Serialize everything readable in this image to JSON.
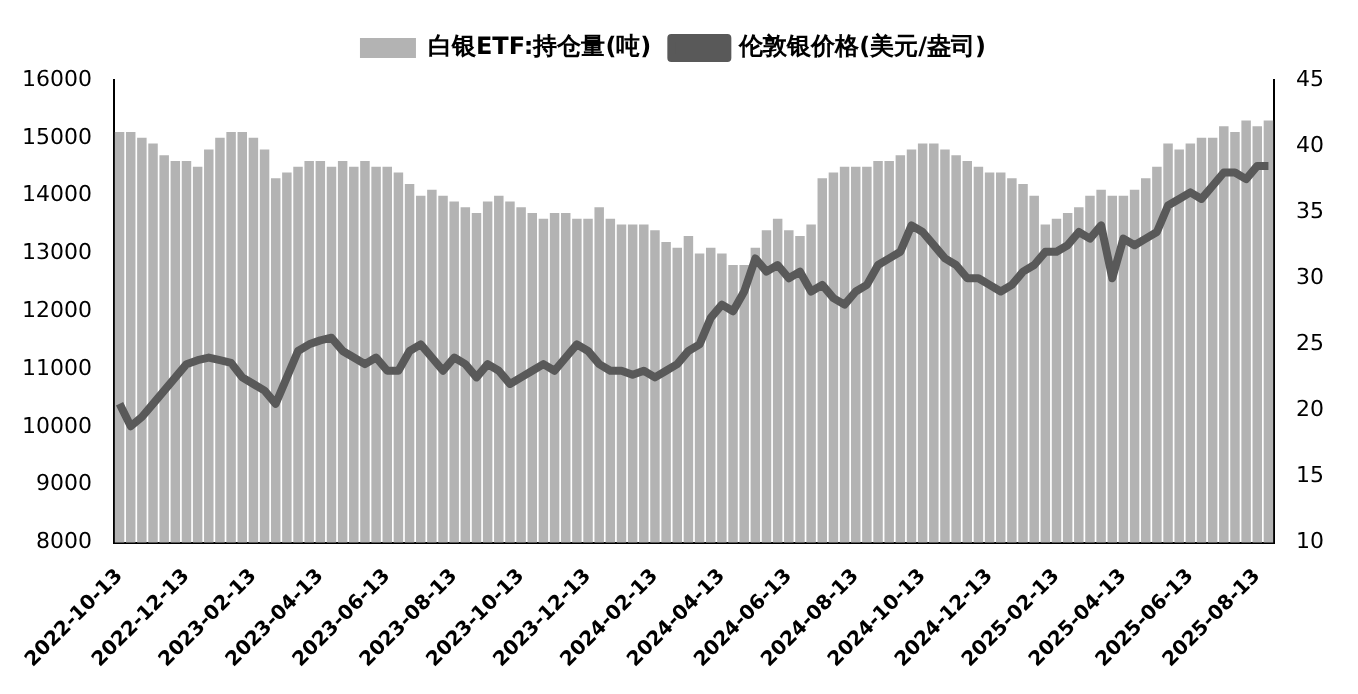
{
  "chart_data": {
    "type": "bar",
    "categories": [
      "2022-10-13",
      null,
      null,
      null,
      null,
      null,
      "2022-12-13",
      null,
      null,
      null,
      null,
      null,
      "2023-02-13",
      null,
      null,
      null,
      null,
      null,
      "2023-04-13",
      null,
      null,
      null,
      null,
      null,
      "2023-06-13",
      null,
      null,
      null,
      null,
      null,
      "2023-08-13",
      null,
      null,
      null,
      null,
      null,
      "2023-10-13",
      null,
      null,
      null,
      null,
      null,
      "2023-12-13",
      null,
      null,
      null,
      null,
      null,
      "2024-02-13",
      null,
      null,
      null,
      null,
      null,
      "2024-04-13",
      null,
      null,
      null,
      null,
      null,
      "2024-06-13",
      null,
      null,
      null,
      null,
      null,
      "2024-08-13",
      null,
      null,
      null,
      null,
      null,
      "2024-10-13",
      null,
      null,
      null,
      null,
      null,
      "2024-12-13",
      null,
      null,
      null,
      null,
      null,
      "2025-02-13",
      null,
      null,
      null,
      null,
      null,
      "2025-04-13",
      null,
      null,
      null,
      null,
      null,
      "2025-06-13",
      null,
      null,
      null,
      null,
      null,
      "2025-08-13",
      null
    ],
    "series": [
      {
        "name": "白银ETF:持仓量(吨)",
        "color": "#b3b3b3",
        "values": [
          15100,
          15100,
          15000,
          14900,
          14700,
          14600,
          14600,
          14500,
          14800,
          15000,
          15100,
          15100,
          15000,
          14800,
          14300,
          14400,
          14500,
          14600,
          14600,
          14500,
          14600,
          14500,
          14600,
          14500,
          14500,
          14400,
          14200,
          14000,
          14100,
          14000,
          13900,
          13800,
          13700,
          13900,
          14000,
          13900,
          13800,
          13700,
          13600,
          13700,
          13700,
          13600,
          13600,
          13800,
          13600,
          13500,
          13500,
          13500,
          13400,
          13200,
          13100,
          13300,
          13000,
          13100,
          13000,
          12800,
          12800,
          13100,
          13400,
          13600,
          13400,
          13300,
          13500,
          14300,
          14400,
          14500,
          14500,
          14500,
          14600,
          14600,
          14700,
          14800,
          14900,
          14900,
          14800,
          14700,
          14600,
          14500,
          14400,
          14400,
          14300,
          14200,
          14000,
          13500,
          13600,
          13700,
          13800,
          14000,
          14100,
          14000,
          14000,
          14100,
          14300,
          14500,
          14900,
          14800,
          14900,
          15000,
          15000,
          15200,
          15100,
          15300,
          15200,
          15300
        ]
      },
      {
        "name": "伦敦银价格(美元/盎司)",
        "type": "line",
        "axis": "y2",
        "color": "#595959",
        "values": [
          20.5,
          18.8,
          19.5,
          20.5,
          21.5,
          22.5,
          23.5,
          23.8,
          24.0,
          23.8,
          23.6,
          22.5,
          22.0,
          21.5,
          20.5,
          22.5,
          24.5,
          25.0,
          25.3,
          25.5,
          24.5,
          24.0,
          23.5,
          24.0,
          23.0,
          23.0,
          24.5,
          25.0,
          24.0,
          23.0,
          24.0,
          23.5,
          22.5,
          23.5,
          23.0,
          22.0,
          22.5,
          23.0,
          23.5,
          23.0,
          24.0,
          25.0,
          24.5,
          23.5,
          23.0,
          23.0,
          22.7,
          23.0,
          22.5,
          23.0,
          23.5,
          24.5,
          25.0,
          27.0,
          28.0,
          27.5,
          29.0,
          31.5,
          30.5,
          31.0,
          30.0,
          30.5,
          29.0,
          29.5,
          28.5,
          28.0,
          29.0,
          29.5,
          31.0,
          31.5,
          32.0,
          34.0,
          33.5,
          32.5,
          31.5,
          31.0,
          30.0,
          30.0,
          29.5,
          29.0,
          29.5,
          30.5,
          31.0,
          32.0,
          32.0,
          32.5,
          33.5,
          33.0,
          34.0,
          30.0,
          33.0,
          32.5,
          33.0,
          33.5,
          35.5,
          36.0,
          36.5,
          36.0,
          37.0,
          38.0,
          38.0,
          37.5,
          38.5,
          38.5
        ]
      }
    ],
    "ylim": [
      8000,
      16000
    ],
    "yticks": [
      8000,
      9000,
      10000,
      11000,
      12000,
      13000,
      14000,
      15000,
      16000
    ],
    "y2lim": [
      10,
      45
    ],
    "y2ticks": [
      10,
      15,
      20,
      25,
      30,
      35,
      40,
      45
    ],
    "legend": "top"
  }
}
